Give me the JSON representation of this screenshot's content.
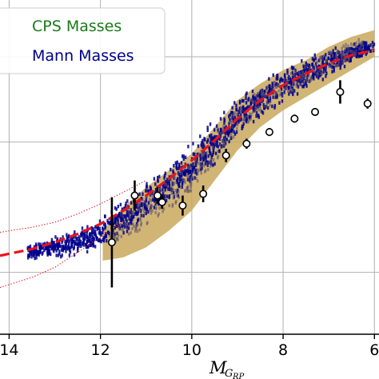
{
  "chart_data": {
    "type": "scatter",
    "title": "",
    "xlabel": "M",
    "xlabel_subscript": "G",
    "xlabel_sub_subscript": "RP",
    "ylabel": "",
    "x_inverted": true,
    "xlim": [
      14.2,
      5.9
    ],
    "ylim": [
      0.0,
      1.0
    ],
    "x_ticks": [
      14,
      12,
      10,
      8,
      6
    ],
    "x_tick_labels": [
      "14",
      "12",
      "10",
      "8",
      "6"
    ],
    "grid": true,
    "legend": {
      "placement": "top-left",
      "entries": [
        {
          "label": "CPS Masses",
          "color": "#1a7a1a"
        },
        {
          "label": "Mann Masses",
          "color": "#00008b"
        }
      ]
    },
    "band": {
      "color": "#c9a85c",
      "upper": [
        [
          11.95,
          0.31
        ],
        [
          11.5,
          0.38
        ],
        [
          11.0,
          0.44
        ],
        [
          10.5,
          0.49
        ],
        [
          10.0,
          0.54
        ],
        [
          9.5,
          0.62
        ],
        [
          9.0,
          0.7
        ],
        [
          8.5,
          0.75
        ],
        [
          8.0,
          0.79
        ],
        [
          7.5,
          0.82
        ],
        [
          7.0,
          0.86
        ],
        [
          6.5,
          0.89
        ],
        [
          6.0,
          0.91
        ]
      ],
      "lower": [
        [
          11.95,
          0.22
        ],
        [
          11.5,
          0.23
        ],
        [
          11.0,
          0.26
        ],
        [
          10.5,
          0.31
        ],
        [
          10.0,
          0.37
        ],
        [
          9.5,
          0.46
        ],
        [
          9.0,
          0.55
        ],
        [
          8.5,
          0.62
        ],
        [
          8.0,
          0.67
        ],
        [
          7.5,
          0.71
        ],
        [
          7.0,
          0.75
        ],
        [
          6.5,
          0.79
        ],
        [
          6.0,
          0.83
        ]
      ]
    },
    "series": [
      {
        "name": "Mann Masses",
        "color": "#00008b",
        "style": "scatter-cloud",
        "trend": [
          [
            13.6,
            0.245
          ],
          [
            13.0,
            0.26
          ],
          [
            12.5,
            0.275
          ],
          [
            12.0,
            0.3
          ],
          [
            11.5,
            0.345
          ],
          [
            11.0,
            0.395
          ],
          [
            10.5,
            0.445
          ],
          [
            10.0,
            0.505
          ],
          [
            9.5,
            0.575
          ],
          [
            9.0,
            0.645
          ],
          [
            8.5,
            0.7
          ],
          [
            8.0,
            0.745
          ],
          [
            7.5,
            0.78
          ],
          [
            7.0,
            0.815
          ],
          [
            6.5,
            0.84
          ],
          [
            6.0,
            0.86
          ]
        ]
      },
      {
        "name": "fit",
        "color": "#e8141e",
        "style": "dashed",
        "points": [
          [
            14.2,
            0.235
          ],
          [
            13.5,
            0.255
          ],
          [
            13.0,
            0.275
          ],
          [
            12.5,
            0.3
          ],
          [
            12.0,
            0.33
          ],
          [
            11.5,
            0.37
          ],
          [
            11.0,
            0.415
          ],
          [
            10.5,
            0.465
          ],
          [
            10.0,
            0.52
          ],
          [
            9.5,
            0.58
          ],
          [
            9.0,
            0.645
          ],
          [
            8.5,
            0.7
          ],
          [
            8.0,
            0.745
          ],
          [
            7.5,
            0.78
          ],
          [
            7.0,
            0.81
          ],
          [
            6.5,
            0.835
          ],
          [
            6.0,
            0.85
          ]
        ]
      },
      {
        "name": "upper-envelope",
        "color": "#e8141e",
        "style": "dotted",
        "points": [
          [
            14.2,
            0.305
          ],
          [
            13.5,
            0.32
          ],
          [
            13.0,
            0.335
          ],
          [
            12.5,
            0.36
          ],
          [
            12.0,
            0.39
          ],
          [
            11.5,
            0.425
          ],
          [
            11.0,
            0.46
          ]
        ]
      },
      {
        "name": "lower-envelope",
        "color": "#e8141e",
        "style": "dotted",
        "points": [
          [
            14.2,
            0.14
          ],
          [
            13.5,
            0.17
          ],
          [
            13.0,
            0.2
          ],
          [
            12.5,
            0.245
          ],
          [
            12.0,
            0.29
          ],
          [
            11.5,
            0.335
          ]
        ]
      },
      {
        "name": "CPS Masses",
        "color": "#000000",
        "style": "points-with-errorbars",
        "points": [
          {
            "x": 11.75,
            "y": 0.275,
            "err": 0.135
          },
          {
            "x": 11.25,
            "y": 0.415,
            "err": 0.045
          },
          {
            "x": 10.75,
            "y": 0.415,
            "err": 0.025
          },
          {
            "x": 10.65,
            "y": 0.395,
            "err": 0.02
          },
          {
            "x": 10.2,
            "y": 0.385,
            "err": 0.03
          },
          {
            "x": 9.75,
            "y": 0.42,
            "err": 0.025
          },
          {
            "x": 9.25,
            "y": 0.535,
            "err": 0.02
          },
          {
            "x": 8.8,
            "y": 0.57,
            "err": 0.015
          },
          {
            "x": 8.3,
            "y": 0.605,
            "err": 0.012
          },
          {
            "x": 7.75,
            "y": 0.645,
            "err": 0.012
          },
          {
            "x": 7.3,
            "y": 0.665,
            "err": 0.012
          },
          {
            "x": 6.75,
            "y": 0.725,
            "err": 0.035
          },
          {
            "x": 6.15,
            "y": 0.69,
            "err": 0.015
          }
        ]
      }
    ]
  }
}
